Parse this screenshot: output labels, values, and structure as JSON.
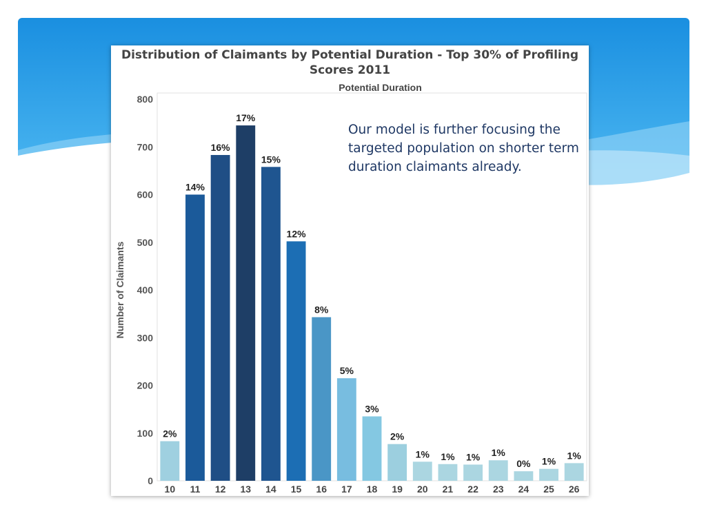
{
  "slide": {
    "caption": "Our model is further focusing the targeted population on shorter term duration claimants already."
  },
  "colors": {
    "header_gradient_top": "#1a8fe0",
    "header_gradient_bottom": "#57c0f5",
    "caption_text": "#1f3864"
  },
  "chart_data": {
    "type": "bar",
    "title": "Distribution of Claimants by Potential Duration - Top 30% of Profiling Scores 2011",
    "xlabel": "Potential Duration",
    "ylabel": "Number of Claimants",
    "ylim": [
      0,
      800
    ],
    "yticks": [
      0,
      100,
      200,
      300,
      400,
      500,
      600,
      700,
      800
    ],
    "grid": false,
    "categories": [
      "10",
      "11",
      "12",
      "13",
      "14",
      "15",
      "16",
      "17",
      "18",
      "19",
      "20",
      "21",
      "22",
      "23",
      "24",
      "25",
      "26"
    ],
    "values": [
      83,
      600,
      683,
      745,
      658,
      502,
      343,
      215,
      135,
      77,
      40,
      35,
      34,
      43,
      20,
      25,
      37
    ],
    "labels": [
      "2%",
      "14%",
      "16%",
      "17%",
      "15%",
      "12%",
      "8%",
      "5%",
      "3%",
      "2%",
      "1%",
      "1%",
      "1%",
      "1%",
      "0%",
      "1%",
      "1%"
    ],
    "colors": [
      "#9fd0e0",
      "#1b5a9a",
      "#1f4e85",
      "#1e3e66",
      "#1f5590",
      "#1c6eb4",
      "#4a96c6",
      "#78bde0",
      "#84c8e2",
      "#9ccfdf",
      "#abd6e1",
      "#abd6e1",
      "#abd6e1",
      "#abd6e1",
      "#abd6e1",
      "#abd6e1",
      "#abd6e1"
    ]
  }
}
